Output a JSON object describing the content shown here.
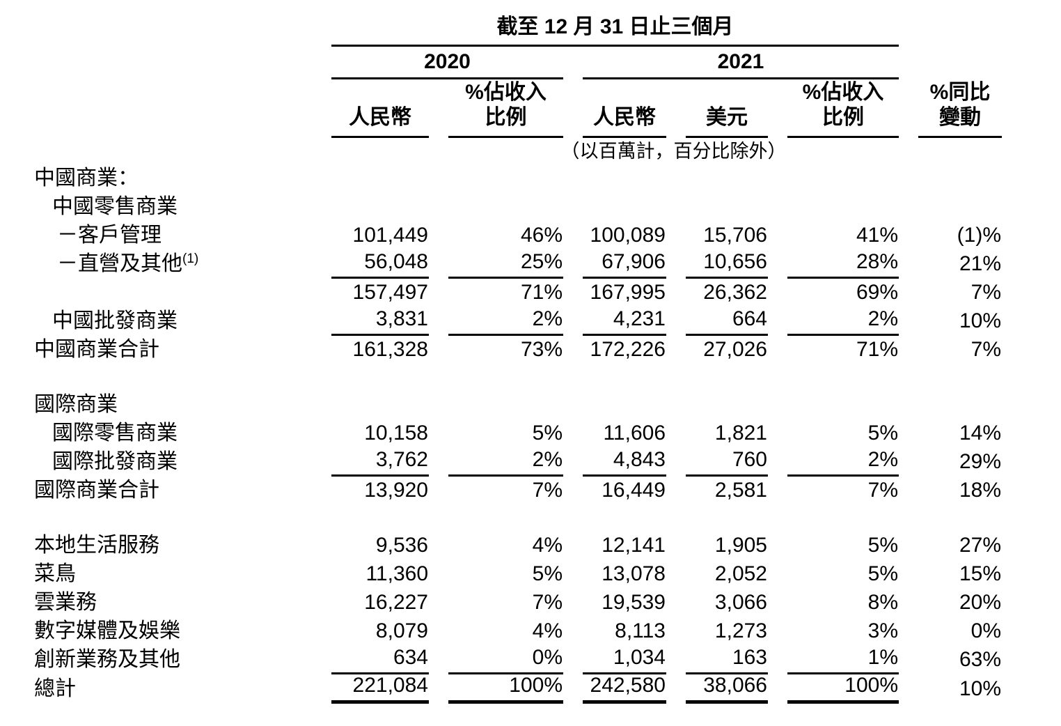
{
  "header": {
    "period": "截至 12 月 31 日止三個月",
    "year_2020": "2020",
    "year_2021": "2021",
    "col_rmb": "人民幣",
    "col_pct_l1": "%佔收入",
    "col_pct_l2": "比例",
    "col_usd": "美元",
    "col_yoy_l1": "%同比",
    "col_yoy_l2": "變動",
    "units_note": "（以百萬計，百分比除外）"
  },
  "rows": [
    {
      "label": "中國商業："
    },
    {
      "label": "中國零售商業"
    },
    {
      "label": "－客戶管理",
      "values": [
        "101,449",
        "46%",
        "100,089",
        "15,706",
        "41%",
        "(1)%"
      ]
    },
    {
      "label": "－直營及其他",
      "sup": "(1)",
      "values": [
        "56,048",
        "25%",
        "67,906",
        "10,656",
        "28%",
        "21%"
      ]
    },
    {
      "label": "",
      "values": [
        "157,497",
        "71%",
        "167,995",
        "26,362",
        "69%",
        "7%"
      ]
    },
    {
      "label": "中國批發商業",
      "values": [
        "3,831",
        "2%",
        "4,231",
        "664",
        "2%",
        "10%"
      ]
    },
    {
      "label": "中國商業合計",
      "values": [
        "161,328",
        "73%",
        "172,226",
        "27,026",
        "71%",
        "7%"
      ]
    },
    {
      "label": "國際商業"
    },
    {
      "label": "國際零售商業",
      "values": [
        "10,158",
        "5%",
        "11,606",
        "1,821",
        "5%",
        "14%"
      ]
    },
    {
      "label": "國際批發商業",
      "values": [
        "3,762",
        "2%",
        "4,843",
        "760",
        "2%",
        "29%"
      ]
    },
    {
      "label": "國際商業合計",
      "values": [
        "13,920",
        "7%",
        "16,449",
        "2,581",
        "7%",
        "18%"
      ]
    },
    {
      "label": "本地生活服務",
      "values": [
        "9,536",
        "4%",
        "12,141",
        "1,905",
        "5%",
        "27%"
      ]
    },
    {
      "label": "菜鳥",
      "values": [
        "11,360",
        "5%",
        "13,078",
        "2,052",
        "5%",
        "15%"
      ]
    },
    {
      "label": "雲業務",
      "values": [
        "16,227",
        "7%",
        "19,539",
        "3,066",
        "8%",
        "20%"
      ]
    },
    {
      "label": "數字媒體及娛樂",
      "values": [
        "8,079",
        "4%",
        "8,113",
        "1,273",
        "3%",
        "0%"
      ]
    },
    {
      "label": "創新業務及其他",
      "values": [
        "634",
        "0%",
        "1,034",
        "163",
        "1%",
        "63%"
      ]
    },
    {
      "label": "總計",
      "values": [
        "221,084",
        "100%",
        "242,580",
        "38,066",
        "100%",
        "10%"
      ]
    }
  ]
}
